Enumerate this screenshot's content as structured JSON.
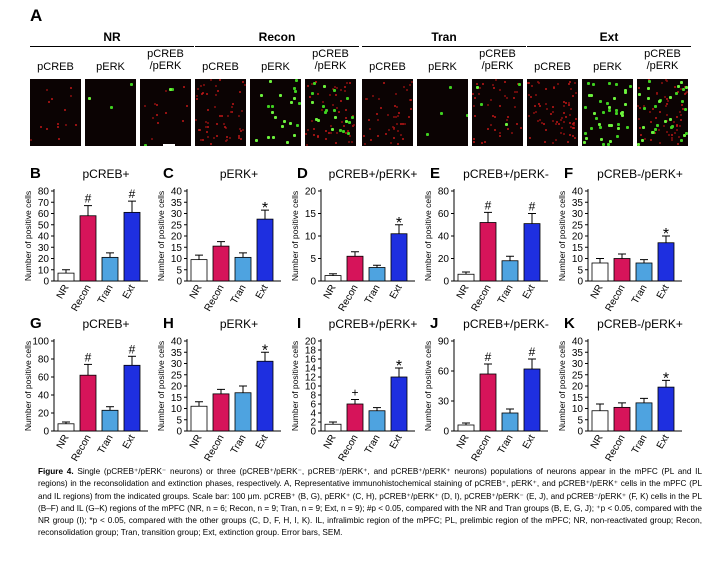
{
  "panelA": {
    "letter": "A",
    "groups": [
      {
        "name": "NR",
        "channels": [
          "pCREB",
          "pERK",
          "pCREB\n/pERK"
        ]
      },
      {
        "name": "Recon",
        "channels": [
          "pCREB",
          "pERK",
          "pCREB\n/pERK"
        ]
      },
      {
        "name": "Tran",
        "channels": [
          "pCREB",
          "pERK",
          "pCREB\n/pERK"
        ]
      },
      {
        "name": "Ext",
        "channels": [
          "pCREB",
          "pERK",
          "pCREB\n/pERK"
        ]
      }
    ]
  },
  "colors": {
    "NR": "#ffffff",
    "Recon": "#d6145a",
    "Tran": "#4ea3e0",
    "Ext": "#1e2fe0"
  },
  "ylabel": "Number of positive cells",
  "chart_data": [
    {
      "letter": "B",
      "type": "bar",
      "title": "pCREB+",
      "categories": [
        "NR",
        "Recon",
        "Tran",
        "Ext"
      ],
      "values": [
        7,
        58,
        21,
        61
      ],
      "errors": [
        3,
        9,
        4,
        10
      ],
      "ylim": [
        0,
        80
      ],
      "yticks": [
        0,
        10,
        20,
        30,
        40,
        50,
        60,
        70,
        80
      ],
      "annotations": [
        "",
        "#",
        "",
        "#"
      ]
    },
    {
      "letter": "C",
      "type": "bar",
      "title": "pERK+",
      "categories": [
        "NR",
        "Recon",
        "Tran",
        "Ext"
      ],
      "values": [
        9.5,
        15.5,
        10.5,
        27.5
      ],
      "errors": [
        2,
        2,
        2,
        4
      ],
      "ylim": [
        0,
        40
      ],
      "yticks": [
        0,
        5,
        10,
        15,
        20,
        25,
        30,
        35,
        40
      ],
      "annotations": [
        "",
        "",
        "",
        "*"
      ]
    },
    {
      "letter": "D",
      "type": "bar",
      "title": "pCREB+/pERK+",
      "categories": [
        "NR",
        "Recon",
        "Tran",
        "Ext"
      ],
      "values": [
        1.2,
        5.5,
        3.0,
        10.5
      ],
      "errors": [
        0.4,
        1,
        0.5,
        2
      ],
      "ylim": [
        0,
        20
      ],
      "yticks": [
        0,
        5,
        10,
        15,
        20
      ],
      "annotations": [
        "",
        "",
        "",
        "*"
      ]
    },
    {
      "letter": "E",
      "type": "bar",
      "title": "pCREB+/pERK-",
      "categories": [
        "NR",
        "Recon",
        "Tran",
        "Ext"
      ],
      "values": [
        6,
        52,
        18,
        51
      ],
      "errors": [
        2,
        9,
        4,
        9
      ],
      "ylim": [
        0,
        80
      ],
      "yticks": [
        0,
        20,
        40,
        60,
        80
      ],
      "annotations": [
        "",
        "#",
        "",
        "#"
      ]
    },
    {
      "letter": "F",
      "type": "bar",
      "title": "pCREB-/pERK+",
      "categories": [
        "NR",
        "Recon",
        "Tran",
        "Ext"
      ],
      "values": [
        8,
        10,
        8,
        17
      ],
      "errors": [
        2,
        2,
        1.5,
        3
      ],
      "ylim": [
        0,
        40
      ],
      "yticks": [
        0,
        5,
        10,
        15,
        20,
        25,
        30,
        35,
        40
      ],
      "annotations": [
        "",
        "",
        "",
        "*"
      ]
    },
    {
      "letter": "G",
      "type": "bar",
      "title": "pCREB+",
      "categories": [
        "NR",
        "Recon",
        "Tran",
        "Ext"
      ],
      "values": [
        8,
        62,
        23,
        73
      ],
      "errors": [
        2,
        12,
        4,
        10
      ],
      "ylim": [
        0,
        100
      ],
      "yticks": [
        0,
        20,
        40,
        60,
        80,
        100
      ],
      "annotations": [
        "",
        "#",
        "",
        "#"
      ]
    },
    {
      "letter": "H",
      "type": "bar",
      "title": "pERK+",
      "categories": [
        "NR",
        "Recon",
        "Tran",
        "Ext"
      ],
      "values": [
        11,
        16.5,
        17,
        31
      ],
      "errors": [
        2,
        2,
        3,
        4
      ],
      "ylim": [
        0,
        40
      ],
      "yticks": [
        0,
        5,
        10,
        15,
        20,
        25,
        30,
        35,
        40
      ],
      "annotations": [
        "",
        "",
        "",
        "*"
      ]
    },
    {
      "letter": "I",
      "type": "bar",
      "title": "pCREB+/pERK+",
      "categories": [
        "NR",
        "Recon",
        "Tran",
        "Ext"
      ],
      "values": [
        1.5,
        6,
        4.5,
        12
      ],
      "errors": [
        0.5,
        1,
        0.7,
        2
      ],
      "ylim": [
        0,
        20
      ],
      "yticks": [
        0,
        2,
        4,
        6,
        8,
        10,
        12,
        14,
        16,
        18,
        20
      ],
      "annotations": [
        "",
        "+",
        "",
        "*"
      ]
    },
    {
      "letter": "J",
      "type": "bar",
      "title": "pCREB+/pERK-",
      "categories": [
        "NR",
        "Recon",
        "Tran",
        "Ext"
      ],
      "values": [
        6,
        57,
        18,
        62
      ],
      "errors": [
        2,
        10,
        4,
        10
      ],
      "ylim": [
        0,
        90
      ],
      "yticks": [
        0,
        30,
        60,
        90
      ],
      "annotations": [
        "",
        "#",
        "",
        "#"
      ]
    },
    {
      "letter": "K",
      "type": "bar",
      "title": "pCREB-/pERK+",
      "categories": [
        "NR",
        "Recon",
        "Tran",
        "Ext"
      ],
      "values": [
        9,
        10.5,
        12.5,
        19.5
      ],
      "errors": [
        3,
        2,
        2,
        3
      ],
      "ylim": [
        0,
        40
      ],
      "yticks": [
        0,
        5,
        10,
        15,
        20,
        25,
        30,
        35,
        40
      ],
      "annotations": [
        "",
        "",
        "",
        "*"
      ]
    }
  ],
  "caption": {
    "label": "Figure 4.",
    "text": "Single (pCREB⁺/pERK⁻ neurons) or three (pCREB⁺/pERK⁻, pCREB⁻/pERK⁺, and pCREB⁺/pERK⁺ neurons) populations of neurons appear in the mPFC (PL and IL regions) in the reconsolidation and extinction phases, respectively. A, Representative immunohistochemical staining of pCREB⁺, pERK⁺, and pCREB⁺/pERK⁺ cells in the mPFC (PL and IL regions) from the indicated groups. Scale bar: 100 μm. pCREB⁺ (B, G), pERK⁺ (C, H), pCREB⁺/pERK⁺ (D, I), pCREB⁺/pERK⁻ (E, J), and pCREB⁻/pERK⁺ (F, K) cells in the PL (B–F) and IL (G–K) regions of the mPFC (NR, n = 6; Recon, n = 9; Tran, n = 9; Ext, n = 9); #p < 0.05, compared with the NR and Tran groups (B, E, G, J); ⁺p < 0.05, compared with the NR group (I); *p < 0.05, compared with the other groups (C, D, F, H, I, K). IL, infralimbic region of the mPFC; PL, prelimbic region of the mPFC; NR, non-reactivated group; Recon, reconsolidation group; Tran, transition group; Ext, extinction group. Error bars, SEM."
  }
}
